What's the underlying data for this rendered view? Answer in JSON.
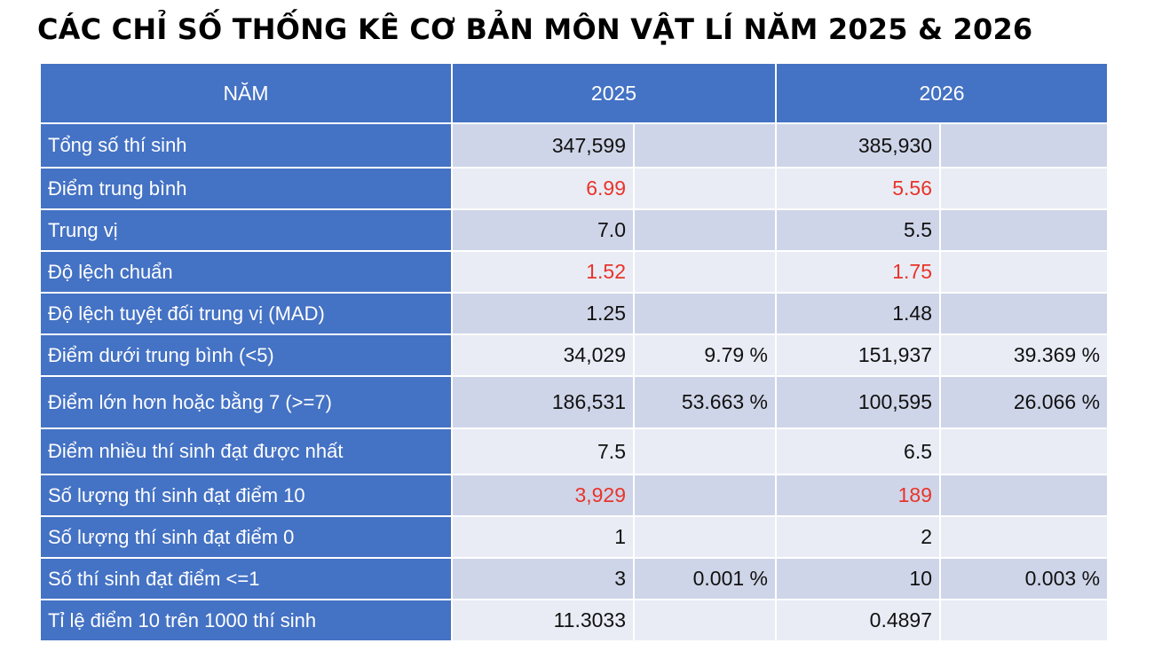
{
  "title": "CÁC CHỈ SỐ THỐNG KÊ CƠ BẢN MÔN VẬT LÍ NĂM 2025 & 2026",
  "header": {
    "col_label": "NĂM",
    "year_a": "2025",
    "year_b": "2026"
  },
  "colors": {
    "header_bg": "#4472c4",
    "highlight": "#e8342a",
    "row_odd": "#cfd5e8",
    "row_even": "#e9ecf5"
  },
  "rows": [
    {
      "label": "Tổng số thí sinh",
      "v2025": "347,599",
      "p2025": "",
      "v2026": "385,930",
      "p2026": "",
      "highlight": false
    },
    {
      "label": "Điểm trung bình",
      "v2025": "6.99",
      "p2025": "",
      "v2026": "5.56",
      "p2026": "",
      "highlight": true
    },
    {
      "label": "Trung vị",
      "v2025": "7.0",
      "p2025": "",
      "v2026": "5.5",
      "p2026": "",
      "highlight": false
    },
    {
      "label": "Độ lệch chuẩn",
      "v2025": "1.52",
      "p2025": "",
      "v2026": "1.75",
      "p2026": "",
      "highlight": true
    },
    {
      "label": "Độ lệch tuyệt đối trung vị (MAD)",
      "v2025": "1.25",
      "p2025": "",
      "v2026": "1.48",
      "p2026": "",
      "highlight": false
    },
    {
      "label": "Điểm dưới trung bình (<5)",
      "v2025": "34,029",
      "p2025": "9.79 %",
      "v2026": "151,937",
      "p2026": "39.369 %",
      "highlight": false
    },
    {
      "label": "Điểm lớn hơn hoặc bằng 7 (>=7)",
      "v2025": "186,531",
      "p2025": "53.663 %",
      "v2026": "100,595",
      "p2026": "26.066 %",
      "highlight": false
    },
    {
      "label": "Điểm nhiều thí sinh đạt được nhất",
      "v2025": "7.5",
      "p2025": "",
      "v2026": "6.5",
      "p2026": "",
      "highlight": false
    },
    {
      "label": "Số lượng thí sinh đạt điểm 10",
      "v2025": "3,929",
      "p2025": "",
      "v2026": "189",
      "p2026": "",
      "highlight": true
    },
    {
      "label": "Số lượng thí sinh đạt điểm 0",
      "v2025": "1",
      "p2025": "",
      "v2026": "2",
      "p2026": "",
      "highlight": false
    },
    {
      "label": "Số thí sinh đạt điểm <=1",
      "v2025": "3",
      "p2025": "0.001 %",
      "v2026": "10",
      "p2026": "0.003 %",
      "highlight": false
    },
    {
      "label": "Tỉ lệ điểm 10 trên 1000 thí sinh",
      "v2025": "11.3033",
      "p2025": "",
      "v2026": "0.4897",
      "p2026": "",
      "highlight": false
    }
  ]
}
